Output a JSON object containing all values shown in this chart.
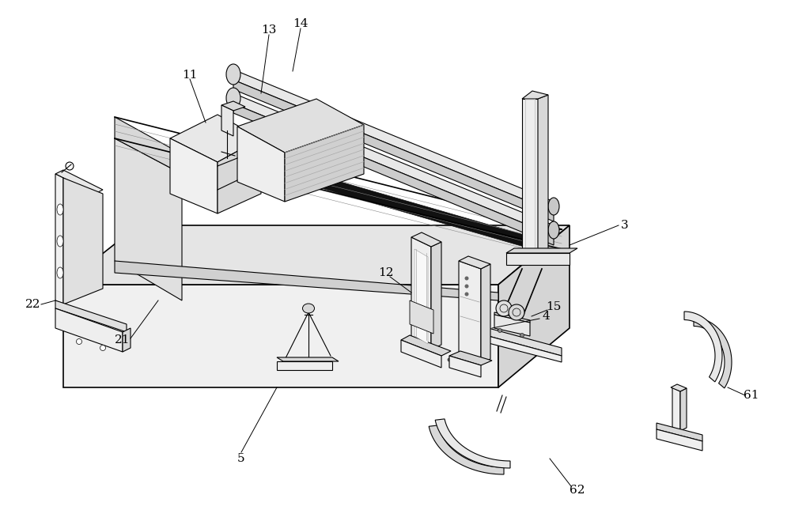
{
  "bg_color": "#ffffff",
  "lc": "#000000",
  "lw": 0.8,
  "lw2": 1.2,
  "figsize": [
    10.0,
    6.64
  ],
  "dpi": 100,
  "label_fs": 11
}
